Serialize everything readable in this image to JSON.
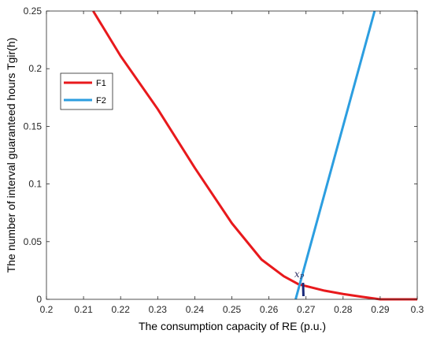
{
  "chart_data": {
    "type": "line",
    "xlabel": "The consumption capacity of RE (p.u.)",
    "ylabel": "The number of interval guaranteed hours Tgir(h)",
    "xlim": [
      0.2,
      0.3
    ],
    "ylim": [
      0,
      0.25
    ],
    "x_ticks": [
      "0.2",
      "0.21",
      "0.22",
      "0.23",
      "0.24",
      "0.25",
      "0.26",
      "0.27",
      "0.28",
      "0.29",
      "0.3"
    ],
    "y_ticks": [
      "0",
      "0.05",
      "0.1",
      "0.15",
      "0.2",
      "0.25"
    ],
    "grid": false,
    "legend_position": "top-left",
    "series": [
      {
        "name": "F1",
        "color": "#e8191c",
        "x": [
          0.2126,
          0.22,
          0.23,
          0.24,
          0.25,
          0.258,
          0.264,
          0.268,
          0.27,
          0.275,
          0.28,
          0.285,
          0.29,
          0.295,
          0.3
        ],
        "y": [
          0.25,
          0.211,
          0.165,
          0.114,
          0.066,
          0.0345,
          0.02,
          0.013,
          0.0115,
          0.0075,
          0.0046,
          0.0022,
          0.0,
          0.0,
          0.0
        ]
      },
      {
        "name": "F2",
        "color": "#2c9ee0",
        "x": [
          0.2672,
          0.2885
        ],
        "y": [
          0.0,
          0.25
        ]
      }
    ],
    "annotations": [
      {
        "text": "x_P",
        "x": 0.2692,
        "y": 0.0137
      }
    ]
  }
}
